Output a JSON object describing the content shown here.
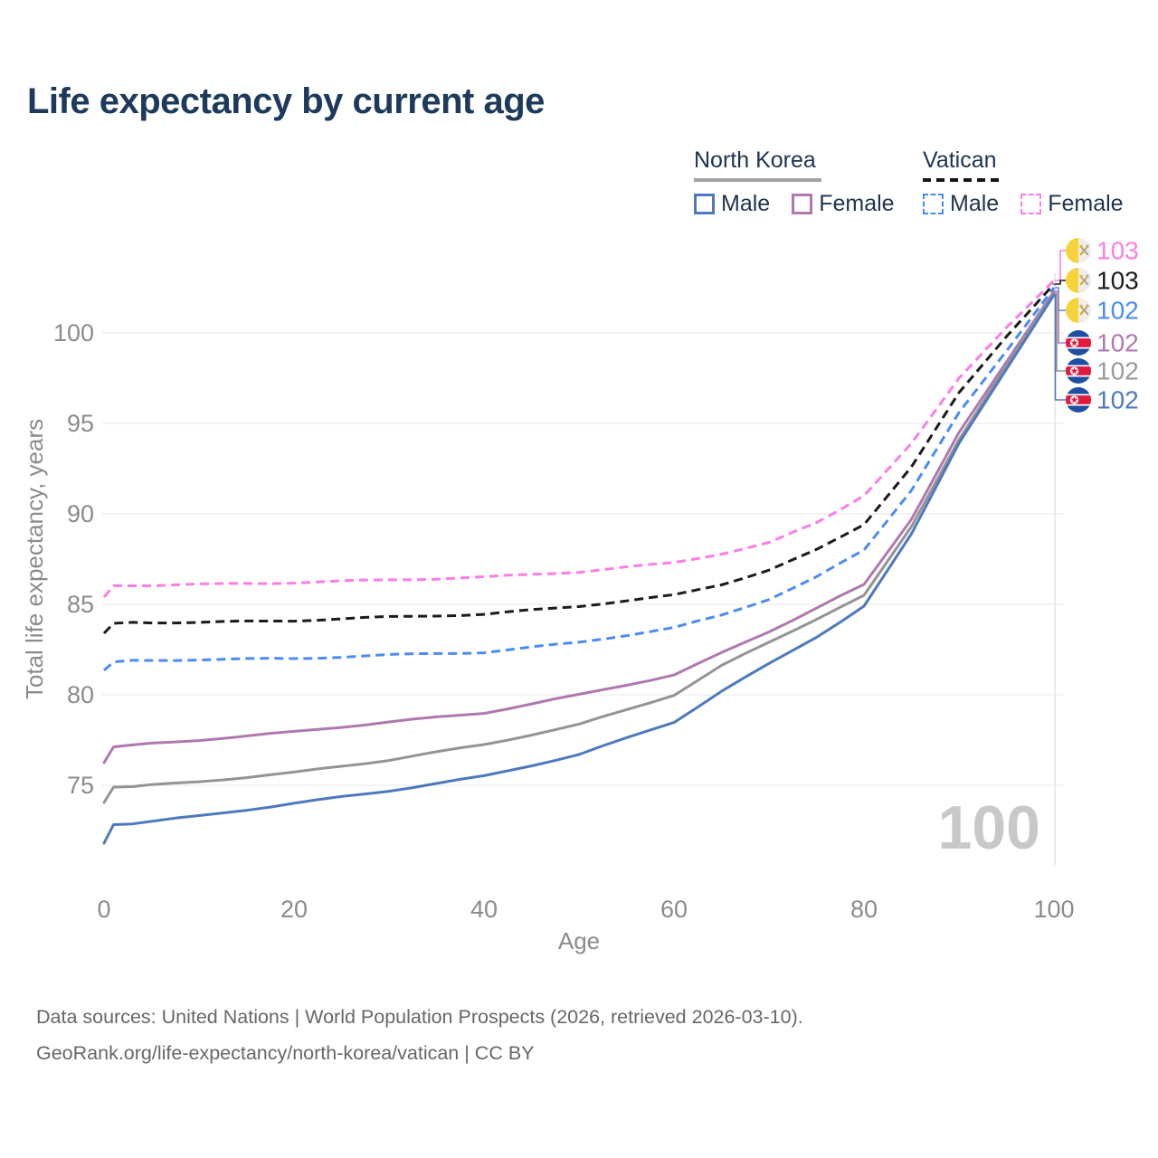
{
  "title": "Life expectancy by current age",
  "legend": {
    "groups": [
      {
        "label": "North Korea",
        "underline_style": "solid",
        "underline_color": "#a3a3a3",
        "items": [
          {
            "label": "Male",
            "color": "#4e79bd",
            "dashed": false
          },
          {
            "label": "Female",
            "color": "#b078b0",
            "dashed": false
          }
        ]
      },
      {
        "label": "Vatican",
        "underline_style": "dashed",
        "underline_color": "#161616",
        "items": [
          {
            "label": "Male",
            "color": "#4b8bf5",
            "dashed": true
          },
          {
            "label": "Female",
            "color": "#fb7de7",
            "dashed": true
          }
        ]
      }
    ]
  },
  "watermark": "100",
  "footer": {
    "line1": "Data sources: United Nations | World Population Prospects (2026, retrieved 2026-03-10).",
    "line2": "GeoRank.org/life-expectancy/north-korea/vatican | CC BY"
  },
  "chart_data": {
    "type": "line",
    "title": "Life expectancy by current age",
    "xlabel": "Age",
    "ylabel": "Total life expectancy, years",
    "xlim": [
      0,
      100
    ],
    "ylim": [
      71,
      104
    ],
    "grid": "horizontal",
    "x_ticks": [
      0,
      20,
      40,
      60,
      80,
      100
    ],
    "y_ticks": [
      75,
      80,
      85,
      90,
      95,
      100
    ],
    "x": [
      0,
      1,
      5,
      10,
      20,
      30,
      40,
      50,
      60,
      65,
      70,
      75,
      80,
      85,
      90,
      95,
      100
    ],
    "series": [
      {
        "name": "Vatican Female",
        "country": "Vatican",
        "sex": "Female",
        "color": "#fb7de7",
        "dashed": true,
        "flag": "vatican",
        "end_label": "103",
        "end_label_color": "#fb7de7",
        "values": [
          85.4,
          86.0,
          86.05,
          86.1,
          86.2,
          86.35,
          86.5,
          86.8,
          87.3,
          87.8,
          88.4,
          89.5,
          91.0,
          93.9,
          97.5,
          100.3,
          102.9
        ]
      },
      {
        "name": "Vatican",
        "country": "Vatican",
        "sex": "Both",
        "color": "#1b1b1b",
        "dashed": true,
        "flag": "vatican",
        "end_label": "103",
        "end_label_color": "#1b1b1b",
        "values": [
          83.4,
          83.95,
          84.0,
          84.0,
          84.1,
          84.3,
          84.45,
          84.9,
          85.5,
          86.1,
          86.9,
          88.0,
          89.4,
          92.6,
          96.7,
          99.8,
          102.7
        ]
      },
      {
        "name": "Vatican Male",
        "country": "Vatican",
        "sex": "Male",
        "color": "#4b8bf5",
        "dashed": true,
        "flag": "vatican",
        "end_label": "102",
        "end_label_color": "#4b8bf5",
        "values": [
          81.35,
          81.85,
          81.9,
          81.95,
          82.0,
          82.2,
          82.35,
          82.9,
          83.7,
          84.4,
          85.3,
          86.5,
          88.0,
          91.3,
          95.6,
          99.0,
          102.5
        ]
      },
      {
        "name": "North Korea Female",
        "country": "North Korea",
        "sex": "Female",
        "color": "#b078b0",
        "dashed": false,
        "flag": "north-korea",
        "end_label": "102",
        "end_label_color": "#b078b0",
        "values": [
          76.25,
          77.15,
          77.3,
          77.5,
          77.95,
          78.5,
          79.0,
          80.0,
          81.1,
          82.3,
          83.5,
          84.8,
          86.1,
          89.7,
          94.5,
          98.4,
          102.3
        ]
      },
      {
        "name": "North Korea",
        "country": "North Korea",
        "sex": "Both",
        "color": "#949494",
        "dashed": false,
        "flag": "north-korea",
        "end_label": "102",
        "end_label_color": "#9a9a9a",
        "values": [
          74.05,
          74.9,
          75.0,
          75.2,
          75.7,
          76.4,
          77.25,
          78.35,
          80.0,
          81.6,
          82.9,
          84.2,
          85.5,
          89.3,
          94.1,
          98.2,
          102.2
        ]
      },
      {
        "name": "North Korea Male",
        "country": "North Korea",
        "sex": "Male",
        "color": "#4e79bd",
        "dashed": false,
        "flag": "north-korea",
        "end_label": "102",
        "end_label_color": "#4e79bd",
        "values": [
          71.8,
          72.8,
          73.0,
          73.3,
          74.0,
          74.7,
          75.5,
          76.7,
          78.5,
          80.2,
          81.7,
          83.2,
          84.9,
          88.9,
          93.9,
          98.0,
          102.1
        ]
      }
    ]
  }
}
